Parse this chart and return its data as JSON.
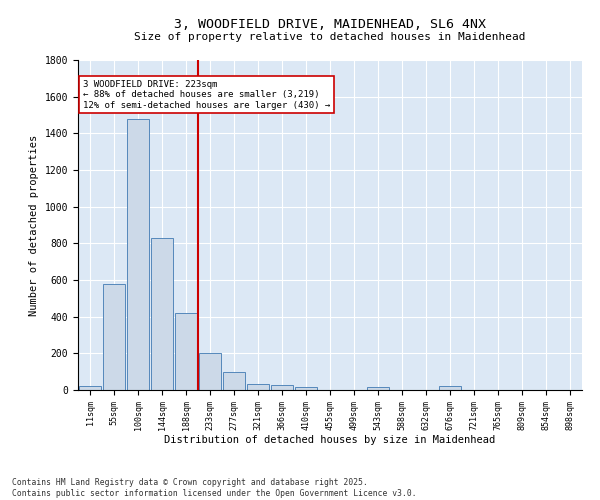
{
  "title_line1": "3, WOODFIELD DRIVE, MAIDENHEAD, SL6 4NX",
  "title_line2": "Size of property relative to detached houses in Maidenhead",
  "xlabel": "Distribution of detached houses by size in Maidenhead",
  "ylabel": "Number of detached properties",
  "bar_color": "#ccd9e8",
  "bar_edge_color": "#5588bb",
  "bg_color": "#dce8f5",
  "vline_color": "#cc0000",
  "vline_x_idx": 5,
  "categories": [
    "11sqm",
    "55sqm",
    "100sqm",
    "144sqm",
    "188sqm",
    "233sqm",
    "277sqm",
    "321sqm",
    "366sqm",
    "410sqm",
    "455sqm",
    "499sqm",
    "543sqm",
    "588sqm",
    "632sqm",
    "676sqm",
    "721sqm",
    "765sqm",
    "809sqm",
    "854sqm",
    "898sqm"
  ],
  "values": [
    20,
    580,
    1480,
    830,
    420,
    200,
    100,
    35,
    25,
    15,
    0,
    0,
    15,
    0,
    0,
    20,
    0,
    0,
    0,
    0,
    0
  ],
  "ylim": [
    0,
    1800
  ],
  "yticks": [
    0,
    200,
    400,
    600,
    800,
    1000,
    1200,
    1400,
    1600,
    1800
  ],
  "annotation_title": "3 WOODFIELD DRIVE: 223sqm",
  "annotation_line1": "← 88% of detached houses are smaller (3,219)",
  "annotation_line2": "12% of semi-detached houses are larger (430) →",
  "footer_line1": "Contains HM Land Registry data © Crown copyright and database right 2025.",
  "footer_line2": "Contains public sector information licensed under the Open Government Licence v3.0."
}
